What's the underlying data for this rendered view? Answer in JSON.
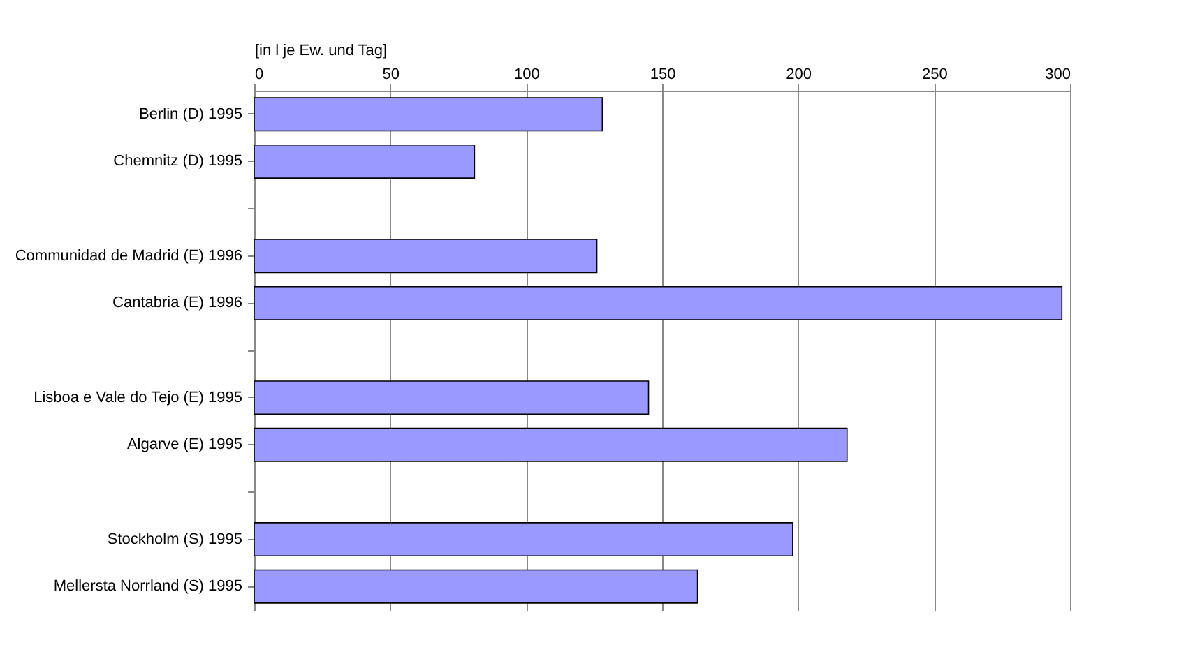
{
  "chart_data": {
    "type": "bar",
    "orientation": "horizontal",
    "xlabel": "[in l je Ew. und Tag]",
    "categories": [
      "Berlin (D) 1995",
      "Chemnitz (D) 1995",
      null,
      "Communidad de Madrid (E) 1996",
      "Cantabria (E) 1996",
      null,
      "Lisboa e Vale do Tejo (E) 1995",
      "Algarve (E) 1995",
      null,
      "Stockholm (S) 1995",
      "Mellersta Norrland  (S) 1995"
    ],
    "values": [
      128,
      81,
      null,
      126,
      297,
      null,
      145,
      218,
      null,
      198,
      163
    ],
    "color": "#9999ff",
    "xlim": [
      0,
      300
    ],
    "xticks": [
      0,
      50,
      100,
      150,
      200,
      250,
      300
    ],
    "grid": "x"
  }
}
